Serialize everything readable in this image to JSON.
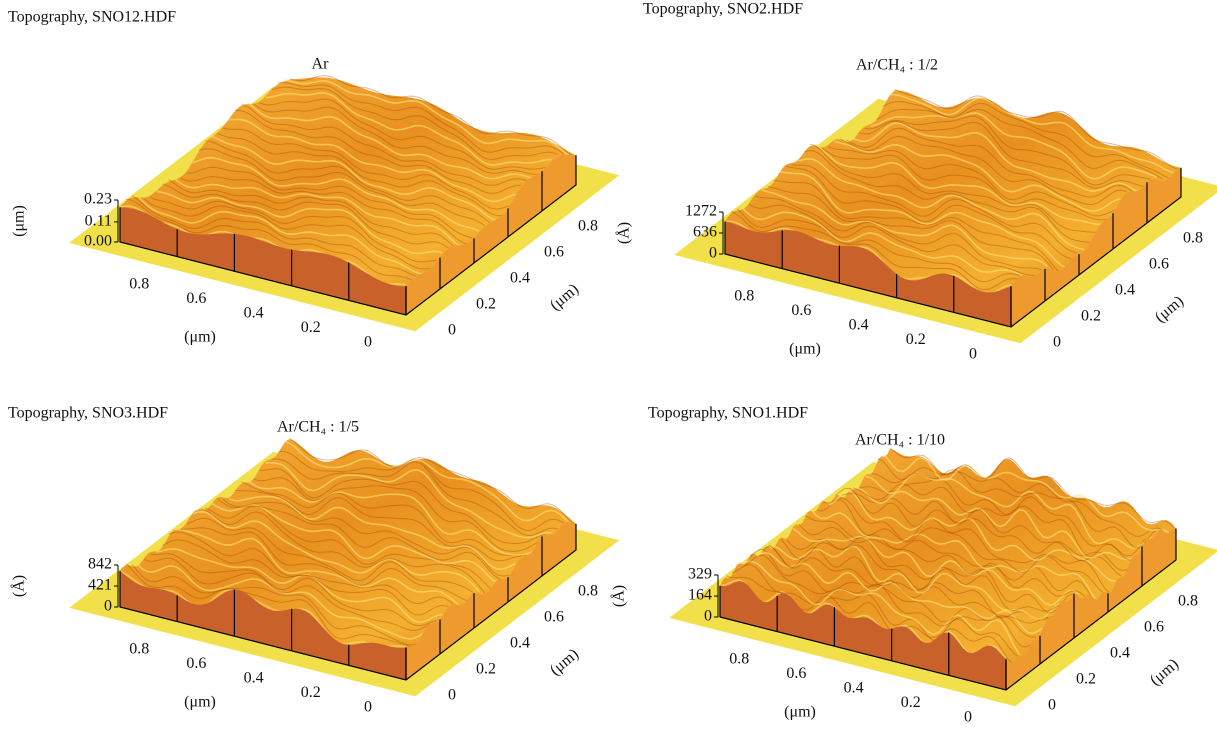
{
  "chart_data": [
    {
      "type": "surface",
      "header": "Topography, SNO12.HDF",
      "title": "Ar",
      "xlabel": "(μm)",
      "ylabel": "(μm)",
      "zlabel": "(μm)",
      "xlim": [
        1,
        0
      ],
      "xticks": [
        0.8,
        0.6,
        0.4,
        0.2,
        0
      ],
      "ylim": [
        0,
        1
      ],
      "yticks": [
        0,
        0.2,
        0.4,
        0.6,
        0.8
      ],
      "zlim": [
        0,
        0.23
      ],
      "zticks": [
        {
          "value": 0,
          "label": "0.00"
        },
        0.11,
        0.23
      ]
    },
    {
      "type": "surface",
      "header": "Topography, SNO2.HDF",
      "title": "Ar/CH₄ : 1/2",
      "xlabel": "(μm)",
      "ylabel": "(μm)",
      "zlabel": "(Å)",
      "xlim": [
        1,
        0
      ],
      "xticks": [
        0.8,
        0.6,
        0.4,
        0.2,
        0
      ],
      "ylim": [
        0,
        1
      ],
      "yticks": [
        0,
        0.2,
        0.4,
        0.6,
        0.8
      ],
      "zlim": [
        0,
        1272
      ],
      "zticks": [
        0,
        636,
        1272
      ]
    },
    {
      "type": "surface",
      "header": "Topography, SNO3.HDF",
      "title": "Ar/CH₄ : 1/5",
      "xlabel": "(μm)",
      "ylabel": "(μm)",
      "zlabel": "(Å)",
      "xlim": [
        1,
        0
      ],
      "xticks": [
        0.8,
        0.6,
        0.4,
        0.2,
        0
      ],
      "ylim": [
        0,
        1
      ],
      "yticks": [
        0,
        0.2,
        0.4,
        0.6,
        0.8
      ],
      "zlim": [
        0,
        842
      ],
      "zticks": [
        0,
        421,
        842
      ]
    },
    {
      "type": "surface",
      "header": "Topography, SNO1.HDF",
      "title": "Ar/CH₄ : 1/10",
      "xlabel": "(μm)",
      "ylabel": "(μm)",
      "zlabel": "(Å)",
      "xlim": [
        1,
        0
      ],
      "xticks": [
        0.8,
        0.6,
        0.4,
        0.2,
        0
      ],
      "ylim": [
        0,
        1
      ],
      "yticks": [
        0,
        0.2,
        0.4,
        0.6,
        0.8
      ],
      "zlim": [
        0,
        329
      ],
      "zticks": [
        0,
        164,
        329
      ]
    }
  ]
}
